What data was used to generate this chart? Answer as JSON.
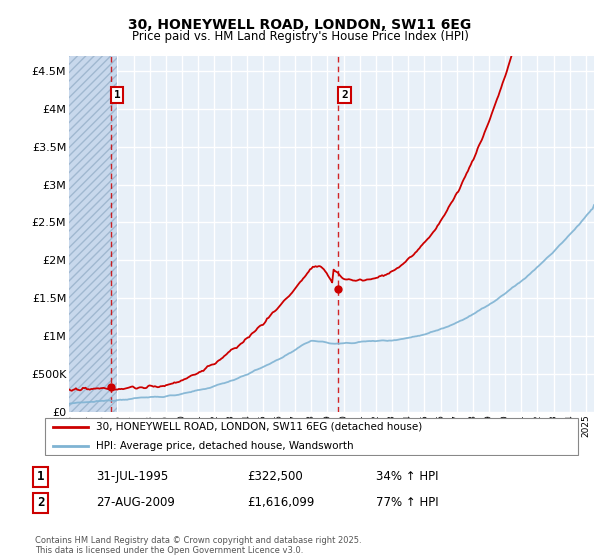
{
  "title_line1": "30, HONEYWELL ROAD, LONDON, SW11 6EG",
  "title_line2": "Price paid vs. HM Land Registry's House Price Index (HPI)",
  "ylabel_ticks": [
    "£0",
    "£500K",
    "£1M",
    "£1.5M",
    "£2M",
    "£2.5M",
    "£3M",
    "£3.5M",
    "£4M",
    "£4.5M"
  ],
  "ytick_values": [
    0,
    500000,
    1000000,
    1500000,
    2000000,
    2500000,
    3000000,
    3500000,
    4000000,
    4500000
  ],
  "ylim": [
    0,
    4700000
  ],
  "xlim_start": 1993.0,
  "xlim_end": 2025.5,
  "xtick_years": [
    1993,
    1994,
    1995,
    1996,
    1997,
    1998,
    1999,
    2000,
    2001,
    2002,
    2003,
    2004,
    2005,
    2006,
    2007,
    2008,
    2009,
    2010,
    2011,
    2012,
    2013,
    2014,
    2015,
    2016,
    2017,
    2018,
    2019,
    2020,
    2021,
    2022,
    2023,
    2024,
    2025
  ],
  "purchase1_x": 1995.58,
  "purchase1_y": 322500,
  "purchase2_x": 2009.65,
  "purchase2_y": 1616099,
  "red_line_color": "#cc0000",
  "blue_line_color": "#7fb3d3",
  "bg_hatch_color": "#d8e4f0",
  "bg_white_color": "#e8f0f8",
  "grid_color": "#ffffff",
  "legend_line1": "30, HONEYWELL ROAD, LONDON, SW11 6EG (detached house)",
  "legend_line2": "HPI: Average price, detached house, Wandsworth",
  "annotation1_label": "1",
  "annotation1_date": "31-JUL-1995",
  "annotation1_price": "£322,500",
  "annotation1_hpi": "34% ↑ HPI",
  "annotation2_label": "2",
  "annotation2_date": "27-AUG-2009",
  "annotation2_price": "£1,616,099",
  "annotation2_hpi": "77% ↑ HPI",
  "footer": "Contains HM Land Registry data © Crown copyright and database right 2025.\nThis data is licensed under the Open Government Licence v3.0."
}
